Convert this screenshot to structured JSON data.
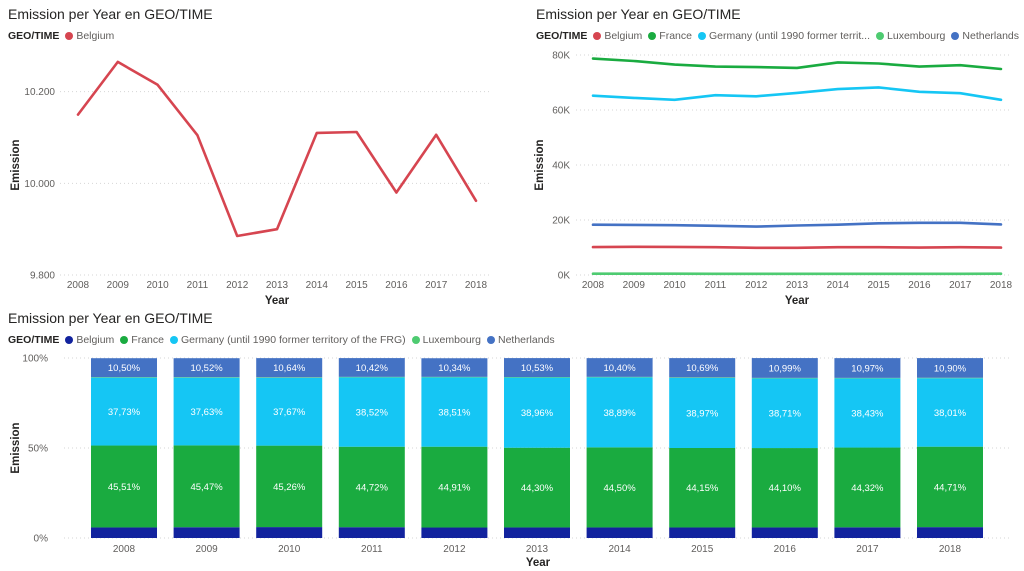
{
  "colors": {
    "belgium": "#D64550",
    "france": "#1AAB40",
    "germany": "#15C6F4",
    "luxembourg": "#4ECB71",
    "netherlands": "#4472C4",
    "belgium_stack": "#12239E"
  },
  "legend_title": "GEO/TIME",
  "chart_data": [
    {
      "type": "line",
      "title": "Emission per Year en GEO/TIME",
      "xlabel": "Year",
      "ylabel": "Emission",
      "legend_title": "GEO/TIME",
      "categories": [
        "2008",
        "2009",
        "2010",
        "2011",
        "2012",
        "2013",
        "2014",
        "2015",
        "2016",
        "2017",
        "2018"
      ],
      "ylim": [
        9800,
        10280
      ],
      "yticks": [
        9800,
        10000,
        10200
      ],
      "ytick_labels": [
        "9.800",
        "10.000",
        "10.200"
      ],
      "grid": true,
      "series": [
        {
          "name": "Belgium",
          "color": "#D64550",
          "values": [
            10150,
            10265,
            10215,
            10105,
            9885,
            9900,
            10110,
            10112,
            9980,
            10106,
            9962
          ]
        }
      ]
    },
    {
      "type": "line",
      "title": "Emission per Year en GEO/TIME",
      "xlabel": "Year",
      "ylabel": "Emission",
      "legend_title": "GEO/TIME",
      "categories": [
        "2008",
        "2009",
        "2010",
        "2011",
        "2012",
        "2013",
        "2014",
        "2015",
        "2016",
        "2017",
        "2018"
      ],
      "ylim": [
        0,
        80000
      ],
      "yticks": [
        0,
        20000,
        40000,
        60000,
        80000
      ],
      "ytick_labels": [
        "0K",
        "20K",
        "40K",
        "60K",
        "80K"
      ],
      "grid": true,
      "series": [
        {
          "name": "Belgium",
          "color": "#D64550",
          "values": [
            10150,
            10265,
            10215,
            10105,
            9885,
            9900,
            10110,
            10112,
            9980,
            10106,
            9962
          ]
        },
        {
          "name": "France",
          "color": "#1AAB40",
          "values": [
            78700,
            77800,
            76500,
            75800,
            75600,
            75300,
            77300,
            76900,
            75800,
            76300,
            74900
          ]
        },
        {
          "name": "Germany (until 1990 former territ...",
          "color": "#15C6F4",
          "values": [
            65200,
            64400,
            63700,
            65400,
            65000,
            66200,
            67600,
            68200,
            66600,
            66100,
            63700
          ]
        },
        {
          "name": "Luxembourg",
          "color": "#4ECB71",
          "values": [
            480,
            470,
            460,
            450,
            440,
            430,
            420,
            430,
            440,
            450,
            460
          ]
        },
        {
          "name": "Netherlands",
          "color": "#4472C4",
          "values": [
            18300,
            18200,
            18100,
            17900,
            17600,
            18000,
            18300,
            18800,
            19000,
            19000,
            18400
          ]
        }
      ]
    },
    {
      "type": "bar",
      "stacked": "100%",
      "title": "Emission per Year en GEO/TIME",
      "xlabel": "Year",
      "ylabel": "Emission",
      "legend_title": "GEO/TIME",
      "categories": [
        "2008",
        "2009",
        "2010",
        "2011",
        "2012",
        "2013",
        "2014",
        "2015",
        "2016",
        "2017",
        "2018"
      ],
      "ylim": [
        0,
        100
      ],
      "yticks": [
        0,
        50,
        100
      ],
      "ytick_labels": [
        "0%",
        "50%",
        "100%"
      ],
      "series": [
        {
          "name": "Belgium",
          "color": "#12239E",
          "values": [
            5.86,
            5.98,
            6.06,
            6.0,
            5.82,
            5.86,
            5.86,
            5.85,
            5.87,
            5.93,
            6.03
          ],
          "labels": []
        },
        {
          "name": "France",
          "color": "#1AAB40",
          "values": [
            45.51,
            45.47,
            45.26,
            44.72,
            44.91,
            44.3,
            44.5,
            44.15,
            44.1,
            44.32,
            44.71
          ],
          "labels": [
            "45,51%",
            "45,47%",
            "45,26%",
            "44,72%",
            "44,91%",
            "44,30%",
            "44,50%",
            "44,15%",
            "44,10%",
            "44,32%",
            "44,71%"
          ]
        },
        {
          "name": "Germany (until 1990 former territory of the FRG)",
          "color": "#15C6F4",
          "values": [
            37.73,
            37.63,
            37.67,
            38.52,
            38.51,
            38.96,
            38.89,
            38.97,
            38.71,
            38.43,
            38.01
          ],
          "labels": [
            "37,73%",
            "37,63%",
            "37,67%",
            "38,52%",
            "38,51%",
            "38,96%",
            "38,89%",
            "38,97%",
            "38,71%",
            "38,43%",
            "38,01%"
          ]
        },
        {
          "name": "Luxembourg",
          "color": "#4ECB71",
          "values": [
            0.29,
            0.29,
            0.3,
            0.29,
            0.29,
            0.3,
            0.28,
            0.28,
            0.29,
            0.28,
            0.29
          ],
          "labels": []
        },
        {
          "name": "Netherlands",
          "color": "#4472C4",
          "values": [
            10.5,
            10.52,
            10.64,
            10.42,
            10.34,
            10.53,
            10.4,
            10.69,
            10.99,
            10.97,
            10.9
          ],
          "labels": [
            "10,50%",
            "10,52%",
            "10,64%",
            "10,42%",
            "10,34%",
            "10,53%",
            "10,40%",
            "10,69%",
            "10,99%",
            "10,97%",
            "10,90%"
          ]
        }
      ]
    }
  ]
}
